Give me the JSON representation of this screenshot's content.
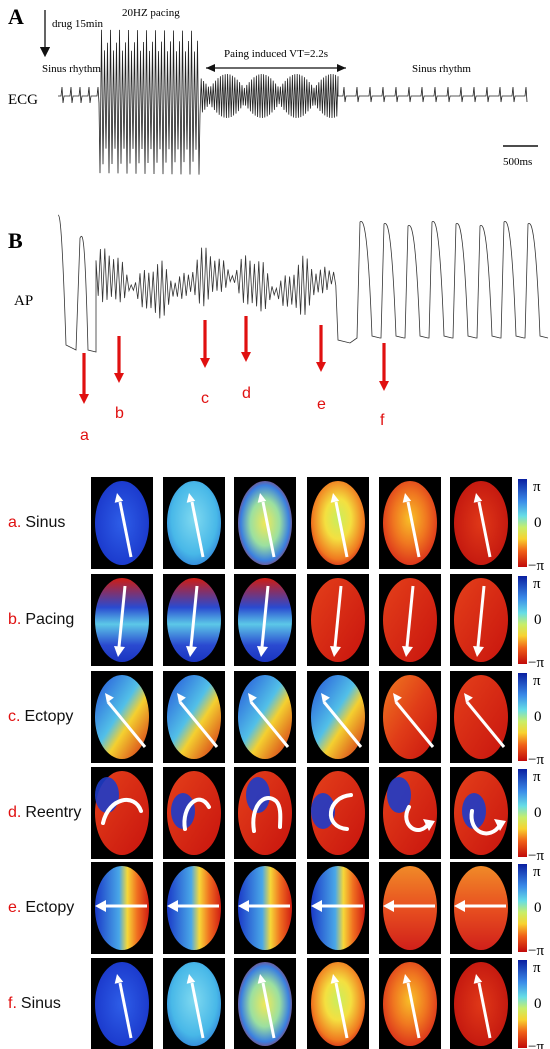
{
  "panelA": {
    "label": "A",
    "drug_label": "drug 15min",
    "pacing_label": "20HZ pacing",
    "sinus_left": "Sinus rhythm",
    "vt_label": "Paing induced VT=2.2s",
    "sinus_right": "Sinus rhythm",
    "trace_label": "ECG",
    "scale_label": "500ms"
  },
  "panelB": {
    "label": "B",
    "trace_label": "AP",
    "arrows": [
      {
        "id": "a",
        "label": "a"
      },
      {
        "id": "b",
        "label": "b"
      },
      {
        "id": "c",
        "label": "c"
      },
      {
        "id": "d",
        "label": "d"
      },
      {
        "id": "e",
        "label": "e"
      },
      {
        "id": "f",
        "label": "f"
      }
    ]
  },
  "maps": {
    "rows": [
      {
        "letter": "a.",
        "name": "Sinus",
        "pattern": "sinus"
      },
      {
        "letter": "b.",
        "name": "Pacing",
        "pattern": "pacing"
      },
      {
        "letter": "c.",
        "name": "Ectopy",
        "pattern": "ectopy_c"
      },
      {
        "letter": "d.",
        "name": "Reentry",
        "pattern": "reentry"
      },
      {
        "letter": "e.",
        "name": "Ectopy",
        "pattern": "ectopy_e"
      },
      {
        "letter": "f.",
        "name": "Sinus",
        "pattern": "sinus"
      }
    ],
    "colorbar": {
      "top": "π",
      "mid": "0",
      "bottom": "−π"
    }
  },
  "colors": {
    "arrow_red": "#e01010",
    "label_red": "#e01010",
    "phase_blue": "#1a3fc8",
    "phase_cyan": "#5fd0e8",
    "phase_yellow": "#f2e84a",
    "phase_red": "#d81a10"
  }
}
